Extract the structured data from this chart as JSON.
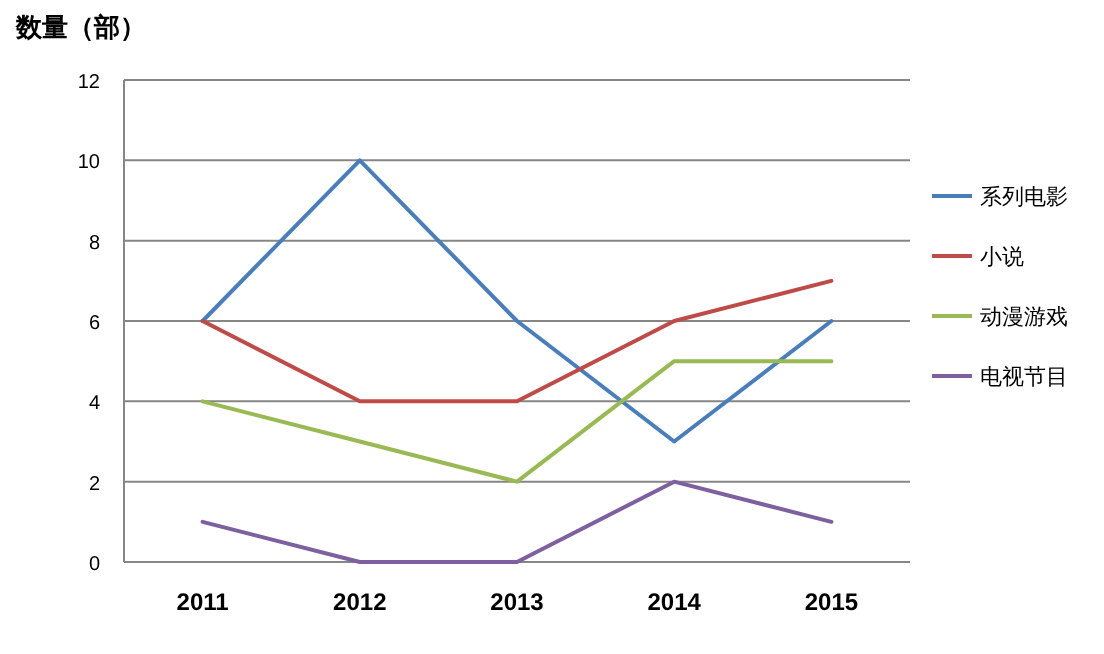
{
  "chart_data": {
    "type": "line",
    "ylabel": "数量（部）",
    "categories": [
      "2011",
      "2012",
      "2013",
      "2014",
      "2015"
    ],
    "series": [
      {
        "name": "系列电影",
        "color": "#4a7ebb",
        "values": [
          6,
          10,
          6,
          3,
          6
        ]
      },
      {
        "name": "小说",
        "color": "#be4b48",
        "values": [
          6,
          4,
          4,
          6,
          7
        ]
      },
      {
        "name": "动漫游戏",
        "color": "#98b954",
        "values": [
          4,
          3,
          2,
          5,
          5
        ]
      },
      {
        "name": "电视节目",
        "color": "#7d60a0",
        "values": [
          1,
          0,
          0,
          2,
          1
        ]
      }
    ],
    "ylim": [
      0,
      12
    ],
    "yticks": [
      0,
      2,
      4,
      6,
      8,
      10,
      12
    ],
    "grid": "y",
    "legend": "right",
    "marker": "none",
    "line_style": "solid"
  }
}
